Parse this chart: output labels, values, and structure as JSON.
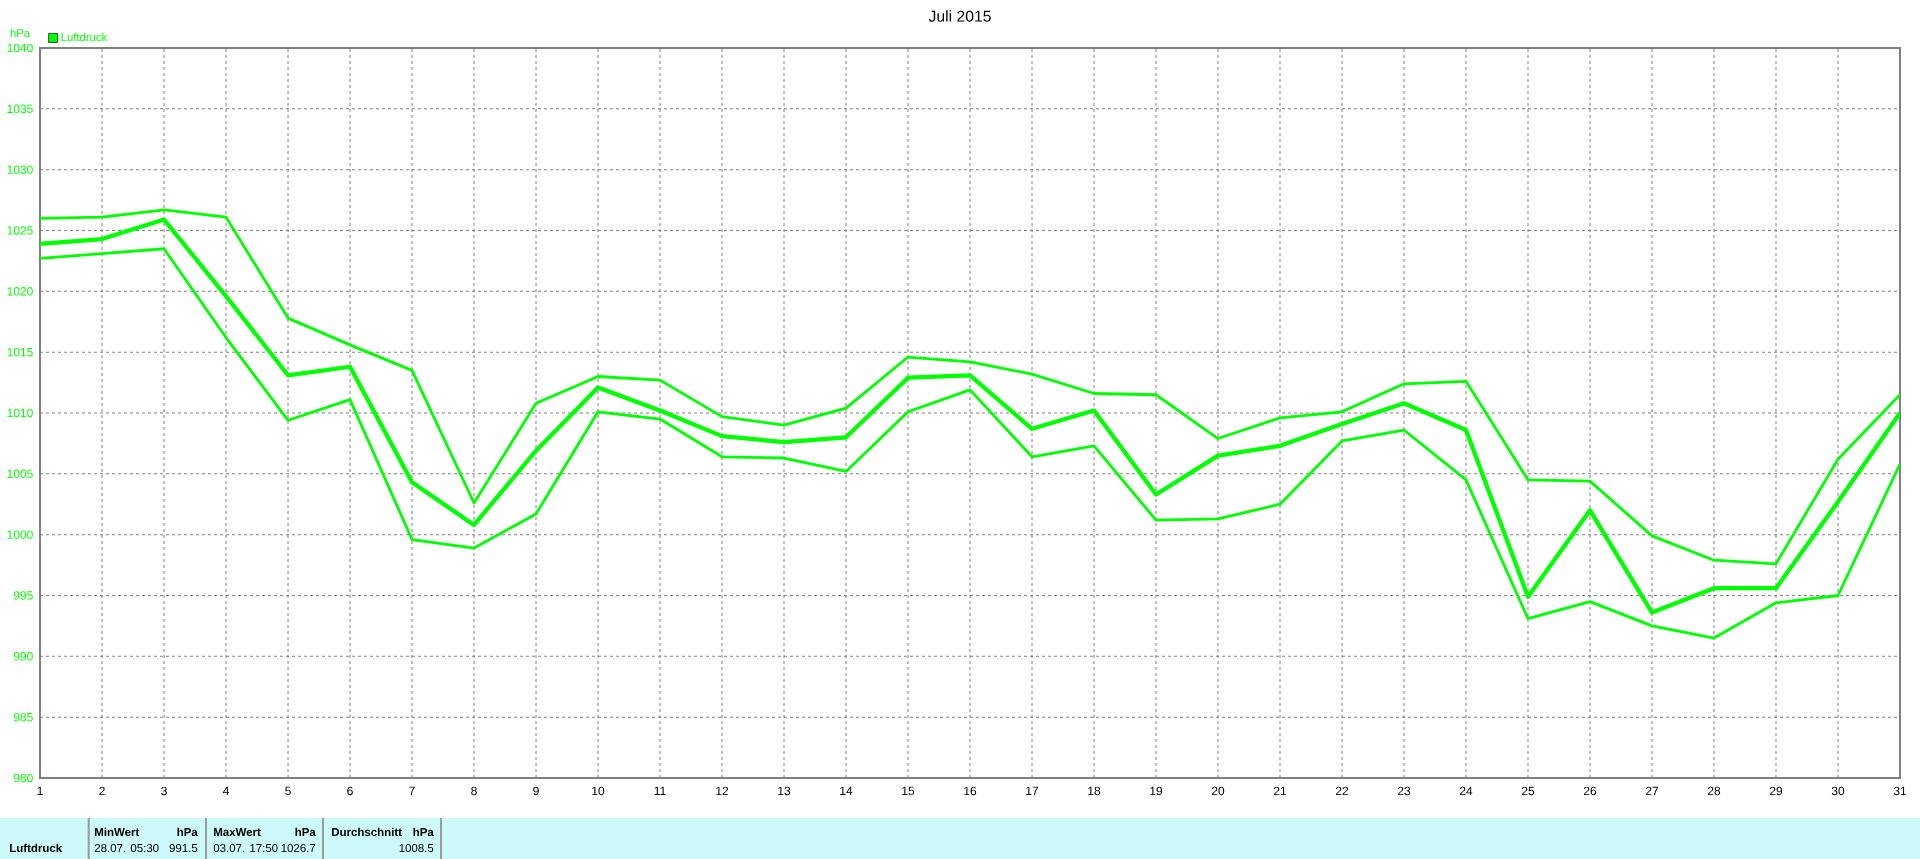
{
  "chart_data": {
    "type": "line",
    "title": "Juli 2015",
    "ylabel": "hPa",
    "x": [
      1,
      2,
      3,
      4,
      5,
      6,
      7,
      8,
      9,
      10,
      11,
      12,
      13,
      14,
      15,
      16,
      17,
      18,
      19,
      20,
      21,
      22,
      23,
      24,
      25,
      26,
      27,
      28,
      29,
      30,
      31
    ],
    "series": [
      {
        "color": "#00ff00",
        "values": [
          1026.0,
          1026.1,
          1026.7,
          1026.1,
          1017.8,
          1015.6,
          1013.5,
          1002.6,
          1010.8,
          1013.0,
          1012.7,
          1009.7,
          1009.0,
          1010.4,
          1014.6,
          1014.2,
          1013.2,
          1011.6,
          1011.5,
          1007.9,
          1009.6,
          1010.1,
          1012.4,
          1012.6,
          1004.5,
          1004.4,
          999.9,
          997.9,
          997.6,
          1006.2,
          1011.5
        ]
      },
      {
        "name": "Luftdruck",
        "color": "#00ff00",
        "values": [
          1023.9,
          1024.3,
          1025.9,
          1019.6,
          1013.1,
          1013.8,
          1004.3,
          1000.8,
          1006.9,
          1012.1,
          1010.2,
          1008.1,
          1007.6,
          1008.0,
          1012.9,
          1013.1,
          1008.7,
          1010.2,
          1003.3,
          1006.5,
          1007.3,
          1009.1,
          1010.8,
          1008.6,
          994.9,
          1002.0,
          993.6,
          995.6,
          995.6,
          1002.7,
          1010.0
        ]
      },
      {
        "color": "#00ff00",
        "values": [
          1022.7,
          1023.1,
          1023.5,
          1016.2,
          1009.4,
          1011.1,
          999.6,
          998.9,
          1001.7,
          1010.1,
          1009.5,
          1006.4,
          1006.3,
          1005.2,
          1010.1,
          1011.9,
          1006.4,
          1007.3,
          1001.2,
          1001.3,
          1002.5,
          1007.7,
          1008.6,
          1004.5,
          993.1,
          994.5,
          992.5,
          991.5,
          994.4,
          995.0,
          1005.8
        ]
      }
    ],
    "xlim": [
      1,
      31
    ],
    "xticks": [
      1,
      2,
      3,
      4,
      5,
      6,
      7,
      8,
      9,
      10,
      11,
      12,
      13,
      14,
      15,
      16,
      17,
      18,
      19,
      20,
      21,
      22,
      23,
      24,
      25,
      26,
      27,
      28,
      29,
      30,
      31
    ],
    "ylim": [
      980,
      1040
    ],
    "yticks": [
      980,
      985,
      990,
      995,
      1000,
      1005,
      1010,
      1015,
      1020,
      1025,
      1030,
      1035,
      1040
    ],
    "grid": true,
    "legend": "top left",
    "annotations": [
      "Luftdruck",
      "MinWert",
      "hPa",
      "28.07. 05:30",
      "991.5",
      "MaxWert",
      "hPa",
      "03.07. 17:50",
      "1026.7",
      "Durchschnitt",
      "hPa",
      "1008.5"
    ]
  }
}
